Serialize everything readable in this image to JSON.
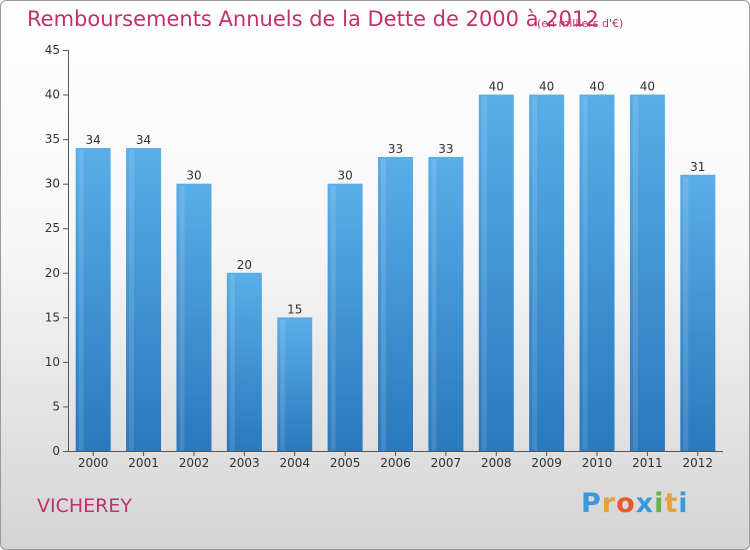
{
  "chart_data": {
    "type": "bar",
    "title": "Remboursements Annuels de la Dette de 2000 à 2012",
    "unit_note": "(en milliers d'€)",
    "categories": [
      "2000",
      "2001",
      "2002",
      "2003",
      "2004",
      "2005",
      "2006",
      "2007",
      "2008",
      "2009",
      "2010",
      "2011",
      "2012"
    ],
    "values": [
      34,
      34,
      30,
      20,
      15,
      30,
      33,
      33,
      40,
      40,
      40,
      40,
      31
    ],
    "yticks": [
      0,
      5,
      10,
      15,
      20,
      25,
      30,
      35,
      40,
      45
    ],
    "ylim": [
      0,
      45
    ],
    "grid": false,
    "bar_color_top": "#5aaee8",
    "bar_color_bottom": "#2a78bd"
  },
  "location": "VICHEREY",
  "logo": {
    "letters": [
      "P",
      "r",
      "o",
      "x",
      "i",
      "t",
      "i"
    ],
    "colors": [
      "#3a9ad9",
      "#e8a13a",
      "#e85a2a",
      "#3a9ad9",
      "#6ab04c",
      "#e8a13a",
      "#3a9ad9"
    ]
  }
}
